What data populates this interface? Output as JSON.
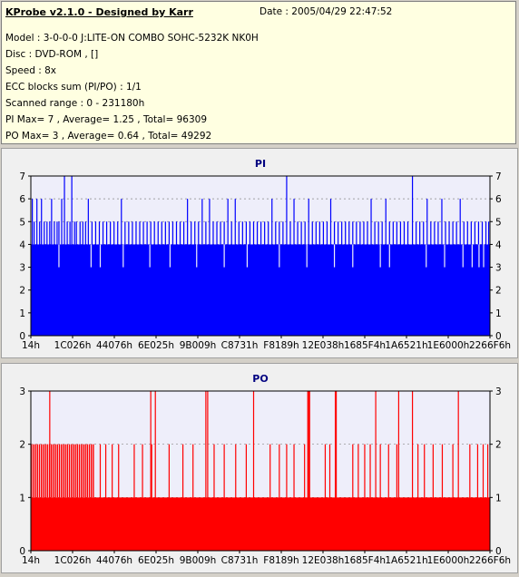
{
  "header": {
    "title": "KProbe v2.1.0 - Designed by Karr",
    "date": "Date : 2005/04/29 22:47:52",
    "lines": [
      "Model : 3-0-0-0 J:LITE-ON COMBO SOHC-5232K NK0H",
      "Disc : DVD-ROM ,  []",
      "Speed : 8x",
      "ECC blocks sum (PI/PO) : 1/1",
      "Scanned range : 0 - 231180h",
      "PI Max= 7 , Average= 1.25 , Total= 96309",
      "PO Max= 3 , Average= 0.64 , Total= 49292"
    ]
  },
  "colors": {
    "pi": "#0000ff",
    "po": "#ff0000",
    "plot_bg": "#eeeefa",
    "title": "#000080"
  },
  "chart_data": [
    {
      "type": "bar",
      "title": "PI",
      "ylim": [
        0,
        7
      ],
      "yticks": [
        "0",
        "1",
        "2",
        "3",
        "4",
        "5",
        "6",
        "7"
      ],
      "xticks": [
        "14h",
        "1C026h",
        "44076h",
        "6E025h",
        "9B009h",
        "C8731h",
        "F8189h",
        "12E038h",
        "1685F4h",
        "1A6521h",
        "1E6000h",
        "2266F6h"
      ],
      "grid": true,
      "baseline": 4,
      "spikes": [
        {
          "x": 0.002,
          "v": 6
        },
        {
          "x": 0.006,
          "v": 5
        },
        {
          "x": 0.012,
          "v": 6
        },
        {
          "x": 0.018,
          "v": 5
        },
        {
          "x": 0.022,
          "v": 6
        },
        {
          "x": 0.028,
          "v": 5
        },
        {
          "x": 0.034,
          "v": 5
        },
        {
          "x": 0.04,
          "v": 5
        },
        {
          "x": 0.044,
          "v": 6
        },
        {
          "x": 0.05,
          "v": 5
        },
        {
          "x": 0.056,
          "v": 5
        },
        {
          "x": 0.06,
          "v": 5
        },
        {
          "x": 0.066,
          "v": 6
        },
        {
          "x": 0.072,
          "v": 7
        },
        {
          "x": 0.078,
          "v": 5
        },
        {
          "x": 0.084,
          "v": 5
        },
        {
          "x": 0.088,
          "v": 7
        },
        {
          "x": 0.094,
          "v": 5
        },
        {
          "x": 0.098,
          "v": 5
        },
        {
          "x": 0.106,
          "v": 5
        },
        {
          "x": 0.112,
          "v": 5
        },
        {
          "x": 0.118,
          "v": 5
        },
        {
          "x": 0.124,
          "v": 6
        },
        {
          "x": 0.132,
          "v": 5
        },
        {
          "x": 0.14,
          "v": 5
        },
        {
          "x": 0.148,
          "v": 5
        },
        {
          "x": 0.156,
          "v": 5
        },
        {
          "x": 0.164,
          "v": 5
        },
        {
          "x": 0.172,
          "v": 5
        },
        {
          "x": 0.18,
          "v": 5
        },
        {
          "x": 0.188,
          "v": 5
        },
        {
          "x": 0.196,
          "v": 6
        },
        {
          "x": 0.204,
          "v": 5
        },
        {
          "x": 0.212,
          "v": 5
        },
        {
          "x": 0.22,
          "v": 5
        },
        {
          "x": 0.228,
          "v": 5
        },
        {
          "x": 0.236,
          "v": 5
        },
        {
          "x": 0.244,
          "v": 5
        },
        {
          "x": 0.252,
          "v": 5
        },
        {
          "x": 0.26,
          "v": 5
        },
        {
          "x": 0.268,
          "v": 5
        },
        {
          "x": 0.276,
          "v": 5
        },
        {
          "x": 0.284,
          "v": 5
        },
        {
          "x": 0.292,
          "v": 5
        },
        {
          "x": 0.3,
          "v": 5
        },
        {
          "x": 0.308,
          "v": 5
        },
        {
          "x": 0.316,
          "v": 5
        },
        {
          "x": 0.324,
          "v": 5
        },
        {
          "x": 0.332,
          "v": 5
        },
        {
          "x": 0.34,
          "v": 6
        },
        {
          "x": 0.348,
          "v": 5
        },
        {
          "x": 0.356,
          "v": 5
        },
        {
          "x": 0.364,
          "v": 5
        },
        {
          "x": 0.372,
          "v": 6
        },
        {
          "x": 0.38,
          "v": 5
        },
        {
          "x": 0.388,
          "v": 6
        },
        {
          "x": 0.396,
          "v": 5
        },
        {
          "x": 0.404,
          "v": 5
        },
        {
          "x": 0.412,
          "v": 5
        },
        {
          "x": 0.42,
          "v": 5
        },
        {
          "x": 0.428,
          "v": 6
        },
        {
          "x": 0.436,
          "v": 5
        },
        {
          "x": 0.444,
          "v": 6
        },
        {
          "x": 0.452,
          "v": 5
        },
        {
          "x": 0.46,
          "v": 5
        },
        {
          "x": 0.468,
          "v": 5
        },
        {
          "x": 0.476,
          "v": 5
        },
        {
          "x": 0.484,
          "v": 5
        },
        {
          "x": 0.492,
          "v": 5
        },
        {
          "x": 0.5,
          "v": 5
        },
        {
          "x": 0.508,
          "v": 5
        },
        {
          "x": 0.516,
          "v": 5
        },
        {
          "x": 0.524,
          "v": 6
        },
        {
          "x": 0.532,
          "v": 5
        },
        {
          "x": 0.54,
          "v": 5
        },
        {
          "x": 0.548,
          "v": 5
        },
        {
          "x": 0.556,
          "v": 7
        },
        {
          "x": 0.564,
          "v": 5
        },
        {
          "x": 0.572,
          "v": 6
        },
        {
          "x": 0.58,
          "v": 5
        },
        {
          "x": 0.588,
          "v": 5
        },
        {
          "x": 0.596,
          "v": 5
        },
        {
          "x": 0.604,
          "v": 6
        },
        {
          "x": 0.612,
          "v": 5
        },
        {
          "x": 0.62,
          "v": 5
        },
        {
          "x": 0.628,
          "v": 5
        },
        {
          "x": 0.636,
          "v": 5
        },
        {
          "x": 0.644,
          "v": 5
        },
        {
          "x": 0.652,
          "v": 6
        },
        {
          "x": 0.66,
          "v": 5
        },
        {
          "x": 0.668,
          "v": 5
        },
        {
          "x": 0.676,
          "v": 5
        },
        {
          "x": 0.684,
          "v": 5
        },
        {
          "x": 0.692,
          "v": 5
        },
        {
          "x": 0.7,
          "v": 5
        },
        {
          "x": 0.708,
          "v": 5
        },
        {
          "x": 0.716,
          "v": 5
        },
        {
          "x": 0.724,
          "v": 5
        },
        {
          "x": 0.732,
          "v": 5
        },
        {
          "x": 0.74,
          "v": 6
        },
        {
          "x": 0.748,
          "v": 5
        },
        {
          "x": 0.756,
          "v": 5
        },
        {
          "x": 0.764,
          "v": 5
        },
        {
          "x": 0.772,
          "v": 6
        },
        {
          "x": 0.78,
          "v": 5
        },
        {
          "x": 0.788,
          "v": 5
        },
        {
          "x": 0.796,
          "v": 5
        },
        {
          "x": 0.804,
          "v": 5
        },
        {
          "x": 0.812,
          "v": 5
        },
        {
          "x": 0.82,
          "v": 5
        },
        {
          "x": 0.83,
          "v": 7
        },
        {
          "x": 0.838,
          "v": 5
        },
        {
          "x": 0.846,
          "v": 5
        },
        {
          "x": 0.854,
          "v": 5
        },
        {
          "x": 0.862,
          "v": 6
        },
        {
          "x": 0.87,
          "v": 5
        },
        {
          "x": 0.878,
          "v": 5
        },
        {
          "x": 0.886,
          "v": 5
        },
        {
          "x": 0.894,
          "v": 6
        },
        {
          "x": 0.902,
          "v": 5
        },
        {
          "x": 0.91,
          "v": 5
        },
        {
          "x": 0.918,
          "v": 5
        },
        {
          "x": 0.926,
          "v": 5
        },
        {
          "x": 0.934,
          "v": 6
        },
        {
          "x": 0.942,
          "v": 5
        },
        {
          "x": 0.95,
          "v": 5
        },
        {
          "x": 0.958,
          "v": 5
        },
        {
          "x": 0.966,
          "v": 5
        },
        {
          "x": 0.974,
          "v": 5
        },
        {
          "x": 0.982,
          "v": 5
        },
        {
          "x": 0.99,
          "v": 5
        },
        {
          "x": 0.996,
          "v": 5
        }
      ],
      "dips": [
        {
          "x": 0.06,
          "v": 3
        },
        {
          "x": 0.13,
          "v": 3
        },
        {
          "x": 0.15,
          "v": 3
        },
        {
          "x": 0.2,
          "v": 3
        },
        {
          "x": 0.258,
          "v": 3
        },
        {
          "x": 0.302,
          "v": 3
        },
        {
          "x": 0.36,
          "v": 3
        },
        {
          "x": 0.42,
          "v": 3
        },
        {
          "x": 0.47,
          "v": 3
        },
        {
          "x": 0.54,
          "v": 3
        },
        {
          "x": 0.6,
          "v": 3
        },
        {
          "x": 0.66,
          "v": 3
        },
        {
          "x": 0.7,
          "v": 3
        },
        {
          "x": 0.76,
          "v": 3
        },
        {
          "x": 0.78,
          "v": 3
        },
        {
          "x": 0.86,
          "v": 3
        },
        {
          "x": 0.9,
          "v": 3
        },
        {
          "x": 0.94,
          "v": 3
        },
        {
          "x": 0.96,
          "v": 3
        },
        {
          "x": 0.975,
          "v": 3
        },
        {
          "x": 0.985,
          "v": 3
        }
      ]
    },
    {
      "type": "bar",
      "title": "PO",
      "ylim": [
        0,
        3
      ],
      "yticks": [
        "0",
        "1",
        "2",
        "3"
      ],
      "xticks": [
        "14h",
        "1C026h",
        "44076h",
        "6E025h",
        "9B009h",
        "C8731h",
        "F8189h",
        "12E038h",
        "1685F4h",
        "1A6521h",
        "1E6000h",
        "2266F6h"
      ],
      "grid": true,
      "baseline": 1,
      "dense_range": [
        0.0,
        0.135
      ],
      "dense_level": 2,
      "spikes": [
        {
          "x": 0.04,
          "v": 3
        },
        {
          "x": 0.15,
          "v": 2
        },
        {
          "x": 0.162,
          "v": 2
        },
        {
          "x": 0.176,
          "v": 2
        },
        {
          "x": 0.19,
          "v": 2
        },
        {
          "x": 0.224,
          "v": 2
        },
        {
          "x": 0.242,
          "v": 2
        },
        {
          "x": 0.26,
          "v": 3
        },
        {
          "x": 0.262,
          "v": 2
        },
        {
          "x": 0.27,
          "v": 3
        },
        {
          "x": 0.3,
          "v": 2
        },
        {
          "x": 0.33,
          "v": 2
        },
        {
          "x": 0.352,
          "v": 2
        },
        {
          "x": 0.38,
          "v": 3
        },
        {
          "x": 0.384,
          "v": 3
        },
        {
          "x": 0.398,
          "v": 2
        },
        {
          "x": 0.42,
          "v": 2
        },
        {
          "x": 0.445,
          "v": 2
        },
        {
          "x": 0.468,
          "v": 2
        },
        {
          "x": 0.484,
          "v": 3
        },
        {
          "x": 0.52,
          "v": 2
        },
        {
          "x": 0.54,
          "v": 2
        },
        {
          "x": 0.556,
          "v": 2
        },
        {
          "x": 0.572,
          "v": 2
        },
        {
          "x": 0.595,
          "v": 2
        },
        {
          "x": 0.602,
          "v": 3
        },
        {
          "x": 0.604,
          "v": 3
        },
        {
          "x": 0.606,
          "v": 3
        },
        {
          "x": 0.64,
          "v": 2
        },
        {
          "x": 0.65,
          "v": 2
        },
        {
          "x": 0.662,
          "v": 3
        },
        {
          "x": 0.664,
          "v": 3
        },
        {
          "x": 0.7,
          "v": 2
        },
        {
          "x": 0.712,
          "v": 2
        },
        {
          "x": 0.726,
          "v": 2
        },
        {
          "x": 0.738,
          "v": 2
        },
        {
          "x": 0.75,
          "v": 3
        },
        {
          "x": 0.76,
          "v": 2
        },
        {
          "x": 0.778,
          "v": 2
        },
        {
          "x": 0.796,
          "v": 2
        },
        {
          "x": 0.8,
          "v": 3
        },
        {
          "x": 0.83,
          "v": 3
        },
        {
          "x": 0.842,
          "v": 2
        },
        {
          "x": 0.856,
          "v": 2
        },
        {
          "x": 0.875,
          "v": 2
        },
        {
          "x": 0.895,
          "v": 2
        },
        {
          "x": 0.918,
          "v": 2
        },
        {
          "x": 0.93,
          "v": 3
        },
        {
          "x": 0.955,
          "v": 2
        },
        {
          "x": 0.972,
          "v": 2
        },
        {
          "x": 0.984,
          "v": 2
        },
        {
          "x": 0.994,
          "v": 2
        }
      ]
    }
  ]
}
